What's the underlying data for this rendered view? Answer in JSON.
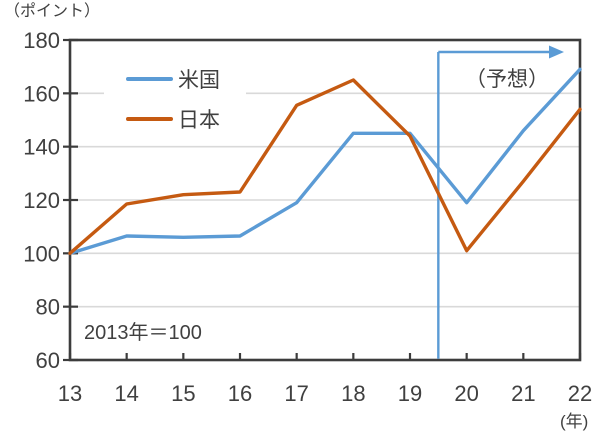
{
  "chart_data": {
    "type": "line",
    "unit_y_label": "（ポイント）",
    "unit_x_label": "(年)",
    "note": "2013年＝100",
    "forecast_label": "（予想）",
    "x": [
      13,
      14,
      15,
      16,
      17,
      18,
      19,
      20,
      21,
      22
    ],
    "x_tick_labels": [
      "13",
      "14",
      "15",
      "16",
      "17",
      "18",
      "19",
      "20",
      "21",
      "22"
    ],
    "xlim": [
      13,
      22
    ],
    "y_ticks": [
      60,
      80,
      100,
      120,
      140,
      160,
      180
    ],
    "ylim": [
      60,
      180
    ],
    "grid": true,
    "legend_position": "inside-top-left",
    "forecast_from_x": 19.5,
    "series": [
      {
        "name": "米国",
        "color": "#5B9BD5",
        "values": [
          100,
          106.5,
          106,
          106.5,
          119,
          145,
          145,
          119,
          146,
          169
        ]
      },
      {
        "name": "日本",
        "color": "#C55A11",
        "values": [
          100,
          118.5,
          122,
          123,
          155.5,
          165,
          144,
          101,
          127,
          154
        ]
      }
    ],
    "colors": {
      "axis": "#3C3C3C",
      "grid": "#D9D9D9",
      "text": "#404040",
      "forecast_arrow": "#5B9BD5"
    }
  }
}
